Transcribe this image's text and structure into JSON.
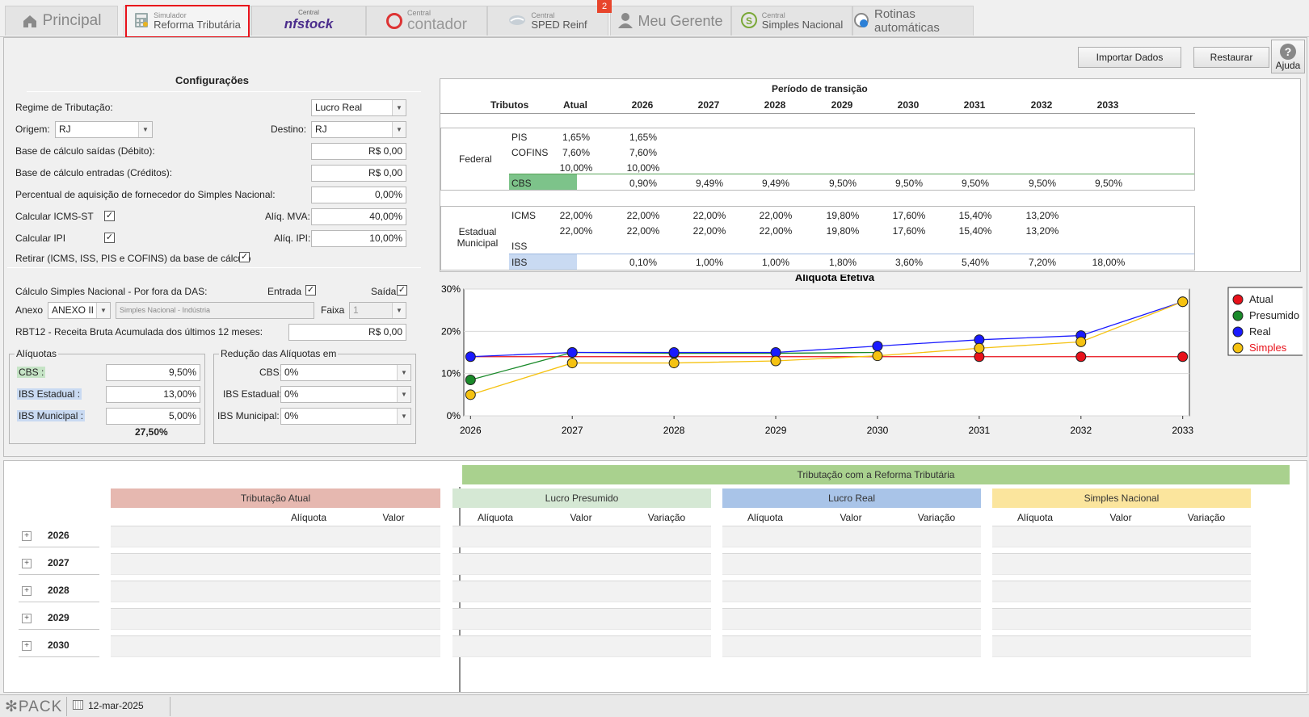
{
  "tabs": [
    {
      "id": "principal",
      "label": "Principal"
    },
    {
      "id": "reforma",
      "small": "Simulador",
      "label": "Reforma Tributária"
    },
    {
      "id": "nfstock",
      "small": "Central",
      "label": "nfstock"
    },
    {
      "id": "contador",
      "small": "Central",
      "label": "contador"
    },
    {
      "id": "reinf",
      "small": "Central",
      "label": "SPED Reinf"
    },
    {
      "id": "gerente",
      "label": "Meu Gerente"
    },
    {
      "id": "simples",
      "small": "Central",
      "label": "Simples Nacional"
    },
    {
      "id": "rotinas",
      "label": "Rotinas automáticas"
    }
  ],
  "notification_count": "2",
  "toolbar": {
    "import": "Importar Dados",
    "restore": "Restaurar",
    "help": "Ajuda"
  },
  "config": {
    "title": "Configurações",
    "regime_label": "Regime de Tributação:",
    "regime_value": "Lucro Real",
    "origem_label": "Origem:",
    "origem_value": "RJ",
    "destino_label": "Destino:",
    "destino_value": "RJ",
    "base_saidas_label": "Base de cálculo saídas (Débito):",
    "base_saidas_value": "R$ 0,00",
    "base_entradas_label": "Base de cálculo entradas (Créditos):",
    "base_entradas_value": "R$ 0,00",
    "perc_simples_label": "Percentual de aquisição de fornecedor do Simples Nacional:",
    "perc_simples_value": "0,00%",
    "icms_st_label": "Calcular ICMS-ST",
    "mva_label": "Alíq. MVA:",
    "mva_value": "40,00%",
    "ipi_label": "Calcular IPI",
    "aliq_ipi_label": "Alíq. IPI:",
    "aliq_ipi_value": "10,00%",
    "retirar_label": "Retirar (ICMS, ISS, PIS e COFINS) da base de cálculo",
    "das_label": "Cálculo Simples Nacional - Por fora da DAS:",
    "entrada_label": "Entrada",
    "saida_label": "Saída",
    "anexo_label": "Anexo",
    "anexo_value": "ANEXO II",
    "anexo_desc": "Simples Nacional - Indústria",
    "faixa_label": "Faixa",
    "faixa_value": "1",
    "rbt12_label": "RBT12 - Receita Bruta Acumulada dos últimos 12 meses:",
    "rbt12_value": "R$ 0,00",
    "aliquotas_title": "Alíquotas",
    "cbs_label": "CBS :",
    "cbs_value": "9,50%",
    "ibs_est_label": "IBS Estadual :",
    "ibs_est_value": "13,00%",
    "ibs_mun_label": "IBS Municipal :",
    "ibs_mun_value": "5,00%",
    "aliq_total": "27,50%",
    "reducao_title": "Redução das Alíquotas em",
    "red_cbs_label": "CBS:",
    "red_cbs_value": "0%",
    "red_ibs_est_label": "IBS Estadual:",
    "red_ibs_est_value": "0%",
    "red_ibs_mun_label": "IBS Municipal:",
    "red_ibs_mun_value": "0%"
  },
  "periodo": {
    "title": "Período de transição",
    "tributos_label": "Tributos",
    "columns": [
      "Atual",
      "2026",
      "2027",
      "2028",
      "2029",
      "2030",
      "2031",
      "2032",
      "2033"
    ],
    "federal_label": "Federal",
    "federal_rows": [
      {
        "name": "PIS",
        "values": [
          "1,65%",
          "1,65%",
          "",
          "",
          "",
          "",
          "",
          "",
          ""
        ]
      },
      {
        "name": "COFINS",
        "values": [
          "7,60%",
          "7,60%",
          "",
          "",
          "",
          "",
          "",
          "",
          ""
        ]
      },
      {
        "name": "",
        "values": [
          "10,00%",
          "10,00%",
          "",
          "",
          "",
          "",
          "",
          "",
          ""
        ]
      },
      {
        "name": "CBS",
        "values": [
          "",
          "0,90%",
          "9,49%",
          "9,49%",
          "9,50%",
          "9,50%",
          "9,50%",
          "9,50%",
          "9,50%"
        ]
      }
    ],
    "estadual_label": "Estadual Municipal",
    "estadual_rows": [
      {
        "name": "ICMS",
        "values": [
          "22,00%",
          "22,00%",
          "22,00%",
          "22,00%",
          "19,80%",
          "17,60%",
          "15,40%",
          "13,20%",
          ""
        ]
      },
      {
        "name": "",
        "values": [
          "22,00%",
          "22,00%",
          "22,00%",
          "22,00%",
          "19,80%",
          "17,60%",
          "15,40%",
          "13,20%",
          ""
        ]
      },
      {
        "name": "ISS",
        "values": [
          "",
          "",
          "",
          "",
          "",
          "",
          "",
          "",
          ""
        ]
      },
      {
        "name": "IBS",
        "values": [
          "",
          "0,10%",
          "1,00%",
          "1,00%",
          "1,80%",
          "3,60%",
          "5,40%",
          "7,20%",
          "18,00%"
        ]
      }
    ]
  },
  "chart_data": {
    "type": "line",
    "title": "Alíquota Efetiva",
    "x": [
      "2026",
      "2027",
      "2028",
      "2029",
      "2030",
      "2031",
      "2032",
      "2033"
    ],
    "ylim": [
      0,
      30
    ],
    "yticks": [
      "0%",
      "10%",
      "20%",
      "30%"
    ],
    "legend_position": "right",
    "series": [
      {
        "name": "Atual",
        "color": "#e8111a",
        "values": [
          null,
          null,
          null,
          null,
          null,
          14,
          14,
          14
        ]
      },
      {
        "name": "Presumido",
        "color": "#1a8a2a",
        "values": [
          8.5,
          15,
          14.8,
          null,
          null,
          null,
          null,
          null
        ]
      },
      {
        "name": "Real",
        "color": "#1a1aff",
        "values": [
          14,
          15,
          15,
          15,
          16.5,
          18,
          19,
          27
        ]
      },
      {
        "name": "Simples",
        "color": "#f5c211",
        "values": [
          5,
          12.5,
          12.5,
          13,
          14.2,
          16,
          17.5,
          27
        ]
      }
    ]
  },
  "results": {
    "banner": "Tributação com a Reforma Tributária",
    "groups": [
      {
        "title": "Tributação Atual",
        "cols": [
          "Alíquota",
          "Valor"
        ],
        "color": "#e6b8b0"
      },
      {
        "title": "Lucro Presumido",
        "cols": [
          "Alíquota",
          "Valor",
          "Variação"
        ],
        "color": "#d5e8d4"
      },
      {
        "title": "Lucro Real",
        "cols": [
          "Alíquota",
          "Valor",
          "Variação"
        ],
        "color": "#a9c4e8"
      },
      {
        "title": "Simples Nacional",
        "cols": [
          "Alíquota",
          "Valor",
          "Variação"
        ],
        "color": "#fbe59d"
      }
    ],
    "years": [
      "2026",
      "2027",
      "2028",
      "2029",
      "2030"
    ]
  },
  "status": {
    "brand": "PACK",
    "date": "12-mar-2025"
  }
}
